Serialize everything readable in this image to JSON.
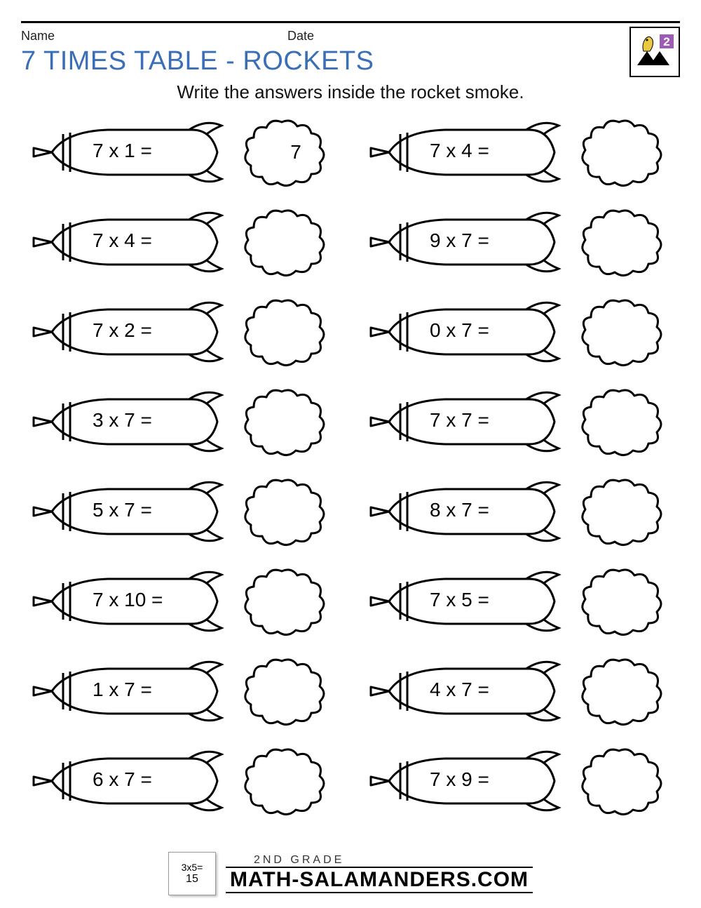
{
  "header": {
    "name_label": "Name",
    "date_label": "Date",
    "grade_number": "2"
  },
  "title": "7 TIMES TABLE - ROCKETS",
  "title_color": "#3a6fb7",
  "instruction": "Write the answers inside the rocket smoke.",
  "stroke_color": "#000000",
  "background_color": "#ffffff",
  "problem_fontsize": 28,
  "columns": {
    "left": [
      {
        "problem": "7 x 1 =",
        "answer": "7"
      },
      {
        "problem": "7 x 4 =",
        "answer": ""
      },
      {
        "problem": "7 x 2 =",
        "answer": ""
      },
      {
        "problem": "3 x 7 =",
        "answer": ""
      },
      {
        "problem": "5 x 7 =",
        "answer": ""
      },
      {
        "problem": "7 x 10 =",
        "answer": ""
      },
      {
        "problem": "1 x 7 =",
        "answer": ""
      },
      {
        "problem": "6 x 7 =",
        "answer": ""
      }
    ],
    "right": [
      {
        "problem": "7 x 4 =",
        "answer": ""
      },
      {
        "problem": "9 x 7 =",
        "answer": ""
      },
      {
        "problem": "0 x 7 =",
        "answer": ""
      },
      {
        "problem": "7 x 7 =",
        "answer": ""
      },
      {
        "problem": "8 x 7 =",
        "answer": ""
      },
      {
        "problem": "7 x 5 =",
        "answer": ""
      },
      {
        "problem": "4 x 7 =",
        "answer": ""
      },
      {
        "problem": "7 x 9 =",
        "answer": ""
      }
    ]
  },
  "footer": {
    "card_equation": "3x5=",
    "card_answer": "15",
    "line1": "2ND GRADE",
    "line2": "MATH-SALAMANDERS.COM"
  }
}
